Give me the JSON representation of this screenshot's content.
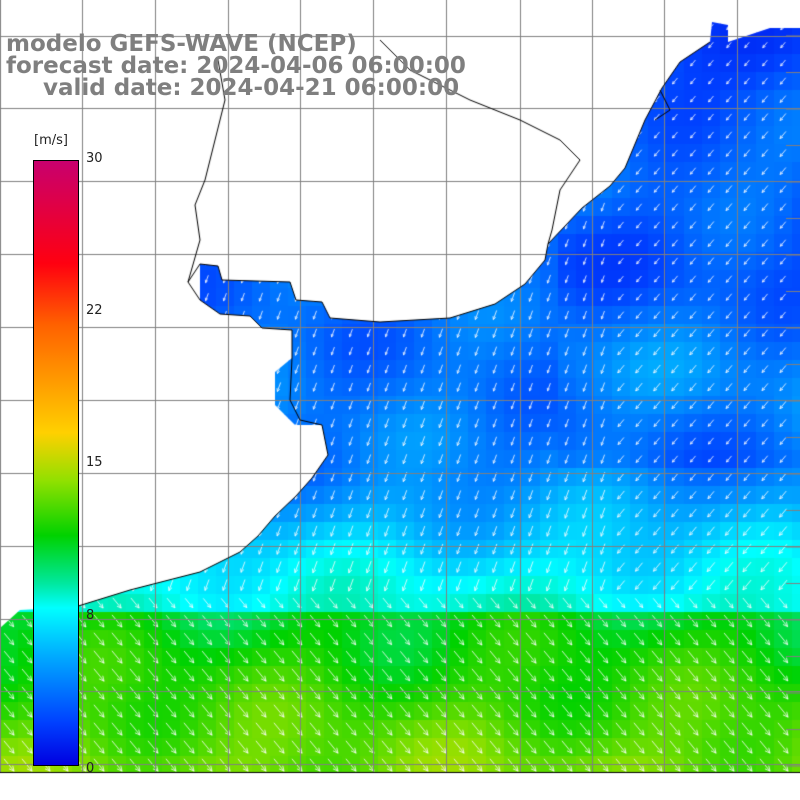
{
  "title": {
    "model": "modelo GEFS-WAVE (NCEP)",
    "forecast": "forecast date: 2024-04-06 06:00:00",
    "valid": "valid date: 2024-04-21 06:00:00"
  },
  "colorbar": {
    "unit": "[m/s]",
    "ticks": [
      "30",
      "22",
      "15",
      "8",
      "0"
    ],
    "tick_values": [
      30,
      22,
      15,
      8,
      0
    ],
    "range": [
      0,
      30
    ],
    "colors": [
      "#0000e0",
      "#0040ff",
      "#00aaff",
      "#00ffff",
      "#00e8a0",
      "#00d200",
      "#90e000",
      "#ffd000",
      "#ff6000",
      "#ff0010",
      "#c8006e"
    ]
  },
  "map": {
    "field": "wind speed with direction arrows",
    "land_color": "#ffffff",
    "grid_color": "#808080",
    "coast_color": "#000000"
  }
}
